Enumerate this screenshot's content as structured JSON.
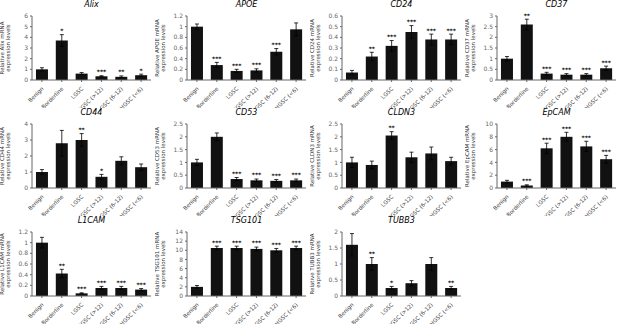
{
  "chart_data": [
    {
      "type": "bar",
      "title": "Alix",
      "y_label": "Relative Alix mRNA\nexpression levels",
      "categories": [
        "Benign",
        "Borderline",
        "LGSC",
        "HGSC (>12)",
        "HGSC (6-12)",
        "HGSC (<6)"
      ],
      "values": [
        1.0,
        3.7,
        0.6,
        0.35,
        0.3,
        0.45
      ],
      "errors": [
        0.15,
        0.55,
        0.1,
        0.05,
        0.08,
        0.1
      ],
      "annotations": [
        {
          "category": "Borderline",
          "text": "*"
        },
        {
          "category": "HGSC (>12)",
          "text": "***"
        },
        {
          "category": "HGSC (6-12)",
          "text": "**"
        },
        {
          "category": "HGSC (<6)",
          "text": "*"
        }
      ],
      "ylim": [
        0,
        6
      ],
      "yticks": [
        0,
        1,
        2,
        3,
        4,
        5,
        6
      ],
      "color": "#111111",
      "grid": false
    },
    {
      "type": "bar",
      "title": "APOE",
      "y_label": "Relative APOE mRNA\nexpression levels",
      "categories": [
        "Benign",
        "Borderline",
        "LGSC",
        "HGSC (>12)",
        "HGSC (6-12)",
        "HGSC (<6)"
      ],
      "values": [
        1.0,
        0.28,
        0.17,
        0.18,
        0.53,
        0.95
      ],
      "errors": [
        0.05,
        0.05,
        0.03,
        0.03,
        0.06,
        0.12
      ],
      "annotations": [
        {
          "category": "Borderline",
          "text": "***"
        },
        {
          "category": "LGSC",
          "text": "***"
        },
        {
          "category": "HGSC (>12)",
          "text": "***"
        },
        {
          "category": "HGSC (6-12)",
          "text": "***"
        }
      ],
      "ylim": [
        0,
        1.2
      ],
      "yticks": [
        0,
        0.2,
        0.4,
        0.6,
        0.8,
        1,
        1.2
      ],
      "color": "#111111",
      "grid": false
    },
    {
      "type": "bar",
      "title": "CD24",
      "y_label": "Relative CD24 mRNA\nexpression levels",
      "categories": [
        "Benign",
        "Borderline",
        "LGSC",
        "HGSC (>12)",
        "HGSC (6-12)",
        "HGSC (<6)"
      ],
      "values": [
        0.07,
        0.22,
        0.32,
        0.45,
        0.38,
        0.38
      ],
      "errors": [
        0.02,
        0.04,
        0.05,
        0.06,
        0.05,
        0.05
      ],
      "annotations": [
        {
          "category": "Borderline",
          "text": "**"
        },
        {
          "category": "LGSC",
          "text": "***"
        },
        {
          "category": "HGSC (>12)",
          "text": "***"
        },
        {
          "category": "HGSC (6-12)",
          "text": "***"
        },
        {
          "category": "HGSC (<6)",
          "text": "***"
        }
      ],
      "ylim": [
        0,
        0.6
      ],
      "yticks": [
        0,
        0.1,
        0.2,
        0.3,
        0.4,
        0.5,
        0.6
      ],
      "color": "#111111",
      "grid": false
    },
    {
      "type": "bar",
      "title": "CD37",
      "y_label": "Relative CD37 mRNA\nexpression levels",
      "categories": [
        "Benign",
        "Borderline",
        "LGSC",
        "HGSC (>12)",
        "HGSC (6-12)",
        "HGSC (<6)"
      ],
      "values": [
        1.0,
        2.6,
        0.3,
        0.25,
        0.25,
        0.55
      ],
      "errors": [
        0.1,
        0.25,
        0.06,
        0.05,
        0.05,
        0.1
      ],
      "annotations": [
        {
          "category": "Borderline",
          "text": "**"
        },
        {
          "category": "LGSC",
          "text": "***"
        },
        {
          "category": "HGSC (>12)",
          "text": "***"
        },
        {
          "category": "HGSC (6-12)",
          "text": "***"
        },
        {
          "category": "HGSC (<6)",
          "text": "***"
        }
      ],
      "ylim": [
        0,
        3
      ],
      "yticks": [
        0,
        0.5,
        1,
        1.5,
        2,
        2.5,
        3
      ],
      "color": "#111111",
      "grid": false
    },
    {
      "type": "bar",
      "title": "CD44",
      "y_label": "Relative CD44 mRNA\nexpression levels",
      "categories": [
        "Benign",
        "Borderline",
        "LGSC",
        "HGSC (>12)",
        "HGSC (6-12)",
        "HGSC (<6)"
      ],
      "values": [
        1.0,
        2.8,
        3.0,
        0.7,
        1.7,
        1.3
      ],
      "errors": [
        0.15,
        0.8,
        0.4,
        0.15,
        0.25,
        0.2
      ],
      "annotations": [
        {
          "category": "LGSC",
          "text": "**"
        },
        {
          "category": "HGSC (>12)",
          "text": "*"
        }
      ],
      "ylim": [
        0,
        4
      ],
      "yticks": [
        0,
        1,
        2,
        3,
        4
      ],
      "color": "#111111",
      "grid": false
    },
    {
      "type": "bar",
      "title": "CD53",
      "y_label": "Relative CD53 mRNA\nexpression levels",
      "categories": [
        "Benign",
        "Borderline",
        "LGSC",
        "HGSC (>12)",
        "HGSC (6-12)",
        "HGSC (<6)"
      ],
      "values": [
        1.0,
        2.0,
        0.35,
        0.3,
        0.28,
        0.3
      ],
      "errors": [
        0.12,
        0.15,
        0.06,
        0.05,
        0.05,
        0.05
      ],
      "annotations": [
        {
          "category": "LGSC",
          "text": "***"
        },
        {
          "category": "HGSC (>12)",
          "text": "***"
        },
        {
          "category": "HGSC (6-12)",
          "text": "***"
        },
        {
          "category": "HGSC (<6)",
          "text": "***"
        }
      ],
      "ylim": [
        0,
        2.5
      ],
      "yticks": [
        0,
        0.5,
        1,
        1.5,
        2,
        2.5
      ],
      "color": "#111111",
      "grid": false
    },
    {
      "type": "bar",
      "title": "CLDN3",
      "y_label": "Relative CLDN3 mRNA\nexpression levels",
      "categories": [
        "Benign",
        "Borderline",
        "LGSC",
        "HGSC (>12)",
        "HGSC (6-12)",
        "HGSC (<6)"
      ],
      "values": [
        1.0,
        0.9,
        2.05,
        1.2,
        1.35,
        1.05
      ],
      "errors": [
        0.2,
        0.15,
        0.15,
        0.2,
        0.25,
        0.15
      ],
      "annotations": [
        {
          "category": "LGSC",
          "text": "**"
        }
      ],
      "ylim": [
        0,
        2.5
      ],
      "yticks": [
        0,
        0.5,
        1,
        1.5,
        2,
        2.5
      ],
      "color": "#111111",
      "grid": false
    },
    {
      "type": "bar",
      "title": "EpCAM",
      "y_label": "Relative EpCAM mRNA\nexpression levels",
      "categories": [
        "Benign",
        "Borderline",
        "LGSC",
        "HGSC (>12)",
        "HGSC (6-12)",
        "HGSC (<6)"
      ],
      "values": [
        1.0,
        0.4,
        6.2,
        8.0,
        6.5,
        4.5
      ],
      "errors": [
        0.2,
        0.1,
        0.8,
        0.7,
        0.8,
        0.6
      ],
      "annotations": [
        {
          "category": "Borderline",
          "text": "***"
        },
        {
          "category": "LGSC",
          "text": "***"
        },
        {
          "category": "HGSC (>12)",
          "text": "***"
        },
        {
          "category": "HGSC (6-12)",
          "text": "***"
        },
        {
          "category": "HGSC (<6)",
          "text": "***"
        }
      ],
      "ylim": [
        0,
        10
      ],
      "yticks": [
        0,
        2,
        4,
        6,
        8,
        10
      ],
      "color": "#111111",
      "grid": false
    },
    {
      "type": "bar",
      "title": "L1CAM",
      "y_label": "Relative L1CAM mRNA\nexpression levels",
      "categories": [
        "Benign",
        "Borderline",
        "LGSC",
        "HGSC (>12)",
        "HGSC (6-12)",
        "HGSC (<6)"
      ],
      "values": [
        1.0,
        0.42,
        0.05,
        0.15,
        0.15,
        0.12
      ],
      "errors": [
        0.1,
        0.08,
        0.01,
        0.03,
        0.03,
        0.02
      ],
      "annotations": [
        {
          "category": "Borderline",
          "text": "**"
        },
        {
          "category": "LGSC",
          "text": "***"
        },
        {
          "category": "HGSC (>12)",
          "text": "***"
        },
        {
          "category": "HGSC (6-12)",
          "text": "***"
        },
        {
          "category": "HGSC (<6)",
          "text": "***"
        }
      ],
      "ylim": [
        0,
        1.2
      ],
      "yticks": [
        0,
        0.2,
        0.4,
        0.6,
        0.8,
        1,
        1.2
      ],
      "color": "#111111",
      "grid": false
    },
    {
      "type": "bar",
      "title": "TSG101",
      "y_label": "Relative TSG101 mRNA\nexpression levels",
      "categories": [
        "Benign",
        "Borderline",
        "LGSC",
        "HGSC (>12)",
        "HGSC (6-12)",
        "HGSC (<6)"
      ],
      "values": [
        2.0,
        10.5,
        10.5,
        10.3,
        10.0,
        10.5
      ],
      "errors": [
        0.3,
        0.4,
        0.4,
        0.4,
        0.4,
        0.4
      ],
      "annotations": [
        {
          "category": "Borderline",
          "text": "***"
        },
        {
          "category": "LGSC",
          "text": "***"
        },
        {
          "category": "HGSC (>12)",
          "text": "***"
        },
        {
          "category": "HGSC (6-12)",
          "text": "***"
        },
        {
          "category": "HGSC (<6)",
          "text": "***"
        }
      ],
      "ylim": [
        0,
        14
      ],
      "yticks": [
        0,
        2,
        4,
        6,
        8,
        10,
        12,
        14
      ],
      "color": "#111111",
      "grid": false
    },
    {
      "type": "bar",
      "title": "TUBB3",
      "y_label": "Relative TUBB3 mRNA\nexpression levels",
      "categories": [
        "Benign",
        "Borderline",
        "LGSC",
        "HGSC (>12)",
        "HGSC (6-12)",
        "HGSC (<6)"
      ],
      "values": [
        1.6,
        1.0,
        0.25,
        0.4,
        1.0,
        0.25
      ],
      "errors": [
        0.35,
        0.2,
        0.05,
        0.08,
        0.2,
        0.05
      ],
      "annotations": [
        {
          "category": "Borderline",
          "text": "**"
        },
        {
          "category": "LGSC",
          "text": "*"
        },
        {
          "category": "HGSC (<6)",
          "text": "**"
        }
      ],
      "ylim": [
        0,
        2
      ],
      "yticks": [
        0,
        0.5,
        1,
        1.5,
        2
      ],
      "color": "#111111",
      "grid": false
    }
  ]
}
